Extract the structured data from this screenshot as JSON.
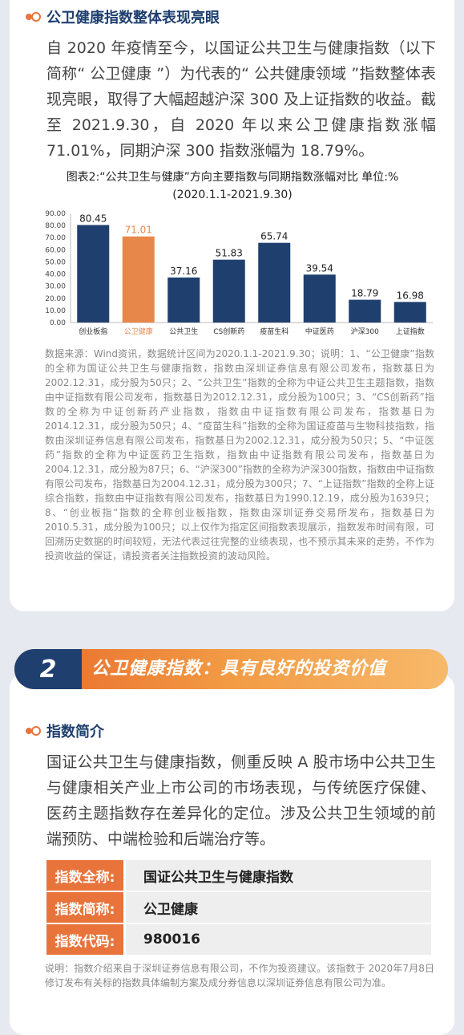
{
  "section1": {
    "title": "公卫健康指数整体表现亮眼",
    "paragraph": "自 2020 年疫情至今，以国证公共卫生与健康指数（以下简称“ 公卫健康 ”）为代表的“ 公共健康领域 ”指数整体表现亮眼，取得了大幅超越沪深 300 及上证指数的收益。截至 2021.9.30，自 2020 年以来公卫健康指数涨幅71.01%，同期沪深 300 指数涨幅为 18.79%。",
    "chart_title_line1": "图表2:“公共卫生与健康”方向主要指数与同期指数涨幅对比  单位:%",
    "chart_title_line2": "(2020.1.1-2021.9.30)",
    "note": "数据来源：Wind资讯，数据统计区间为2020.1.1-2021.9.30；说明：1、“公卫健康”指数的全称为国证公共卫生与健康指数，指数由深圳证券信息有限公司发布，指数基日为2002.12.31，成分股为50只；2、“公共卫生”指数的全称为中证公共卫生主题指数，指数由中证指数有限公司发布，指数基日为2012.12.31，成分股为100只；3、“CS创新药”指数的全称为中证创新药产业指数，指数由中证指数有限公司发布，指数基日为2014.12.31，成分股为50只；4、“疫苗生科”指数的全称为国证疫苗与生物科技指数，指数由深圳证券信息有限公司发布，指数基日为2002.12.31，成分股为50只；5、“中证医药”指数的全称为中证医药卫生指数，指数由中证指数有限公司发布，指数基日为2004.12.31，成分股为87只；6、“沪深300”指数的全称为沪深300指数，指数由中证指数有限公司发布，指数基日为2004.12.31，成分股为300只；7、“上证指数”指数的全称上证综合指数，指数由中证指数有限公司发布，指数基日为1990.12.19，成分股为1639只；8、“创业板指”指数的全称创业板指数，指数由深圳证券交易所发布，指数基日为2010.5.31，成分股为100只；以上仅作为指定区间指数表现展示，指数发布时间有限，可回溯历史数据的时间较短，无法代表过往完整的业绩表现，也不预示其未来的走势，不作为投资收益的保证，请投资者关注指数投资的波动风险。"
  },
  "banner": {
    "number": "2",
    "text": "公卫健康指数：具有良好的投资价值"
  },
  "section2": {
    "title": "指数简介",
    "paragraph": "国证公共卫生与健康指数，侧重反映 A 股市场中公共卫生与健康相关产业上市公司的市场表现，与传统医疗保健、医药主题指数存在差异化的定位。涉及公共卫生领域的前端预防、中端检验和后端治疗等。",
    "table": [
      {
        "key": "指数全称:",
        "value": "国证公共卫生与健康指数"
      },
      {
        "key": "指数简称:",
        "value": "公卫健康"
      },
      {
        "key": "指数代码:",
        "value": "980016"
      }
    ],
    "note": "说明：指数介绍来自于深圳证券信息有限公司，不作为投资建议。该指数于 2020年7月8日修订发布有关标的指数具体编制方案及成分券信息以深圳证券信息有限公司为准。"
  },
  "colors": {
    "navy": "#1f3f6e",
    "orange": "#e8743b",
    "bar_highlight": "#e8874a"
  },
  "chart_data": {
    "type": "bar",
    "categories": [
      "创业板指",
      "公卫健康",
      "公共卫生",
      "CS创新药",
      "疫苗生科",
      "中证医药",
      "沪深300",
      "上证指数"
    ],
    "values": [
      80.45,
      71.01,
      37.16,
      51.83,
      65.74,
      39.54,
      18.79,
      16.98
    ],
    "value_labels": [
      "80.45",
      "71.01",
      "37.16",
      "51.83",
      "65.74",
      "39.54",
      "18.79",
      "16.98"
    ],
    "highlight": "公卫健康",
    "ylim": [
      0,
      90
    ],
    "yticks": [
      "0.00",
      "10.00",
      "20.00",
      "30.00",
      "40.00",
      "50.00",
      "60.00",
      "70.00",
      "80.00",
      "90.00"
    ],
    "grid": false
  }
}
